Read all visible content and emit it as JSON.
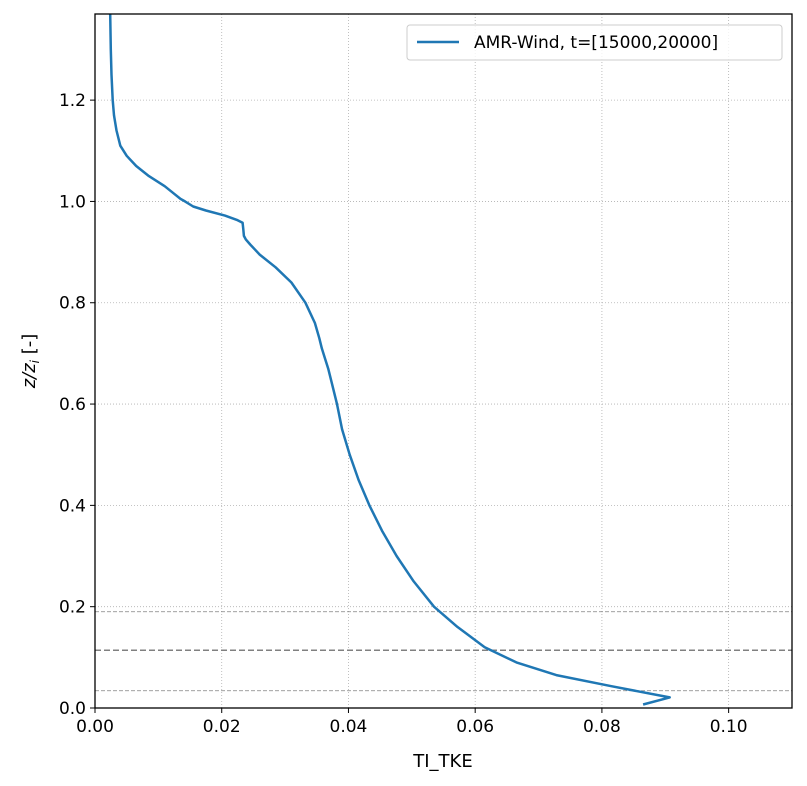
{
  "chart_data": {
    "type": "line",
    "title": "",
    "xlabel": "TI_TKE",
    "ylabel_main": "z/z",
    "ylabel_sub": "i",
    "ylabel_suffix": " [-]",
    "xlim": [
      0.0,
      0.11
    ],
    "ylim": [
      0.0,
      1.37
    ],
    "xticks": [
      0.0,
      0.02,
      0.04,
      0.06,
      0.08,
      0.1
    ],
    "xtick_labels": [
      "0.00",
      "0.02",
      "0.04",
      "0.06",
      "0.08",
      "0.10"
    ],
    "yticks": [
      0.0,
      0.2,
      0.4,
      0.6,
      0.8,
      1.0,
      1.2
    ],
    "ytick_labels": [
      "0.0",
      "0.2",
      "0.4",
      "0.6",
      "0.8",
      "1.0",
      "1.2"
    ],
    "grid": true,
    "legend": "top-right",
    "series": [
      {
        "name": "AMR-Wind, t=[15000,20000]",
        "color": "#1f77b4",
        "x": [
          0.0024,
          0.0025,
          0.0026,
          0.0028,
          0.003,
          0.0034,
          0.004,
          0.005,
          0.0065,
          0.0085,
          0.011,
          0.0125,
          0.0135,
          0.0142,
          0.0155,
          0.0175,
          0.0205,
          0.0225,
          0.0233,
          0.0234,
          0.0235,
          0.0238,
          0.0245,
          0.026,
          0.0285,
          0.031,
          0.0332,
          0.0347,
          0.0354,
          0.0358,
          0.0363,
          0.0368,
          0.0374,
          0.0382,
          0.039,
          0.0402,
          0.0416,
          0.0433,
          0.0453,
          0.0476,
          0.0503,
          0.0535,
          0.0572,
          0.0615,
          0.0665,
          0.0728,
          0.0815,
          0.0907,
          0.0865
        ],
        "y": [
          1.37,
          1.3,
          1.25,
          1.2,
          1.17,
          1.14,
          1.11,
          1.09,
          1.07,
          1.05,
          1.03,
          1.015,
          1.005,
          1.0,
          0.99,
          0.982,
          0.972,
          0.963,
          0.958,
          0.945,
          0.932,
          0.925,
          0.915,
          0.895,
          0.87,
          0.84,
          0.8,
          0.76,
          0.73,
          0.71,
          0.69,
          0.67,
          0.64,
          0.6,
          0.55,
          0.5,
          0.45,
          0.4,
          0.35,
          0.3,
          0.25,
          0.2,
          0.16,
          0.12,
          0.09,
          0.065,
          0.043,
          0.021,
          0.007
        ]
      }
    ],
    "hlines": [
      {
        "y": 0.19,
        "style": "dashed-thin",
        "color": "#808080"
      },
      {
        "y": 0.114,
        "style": "dashed",
        "color": "#808080"
      },
      {
        "y": 0.034,
        "style": "dashed-thin",
        "color": "#808080"
      }
    ]
  }
}
